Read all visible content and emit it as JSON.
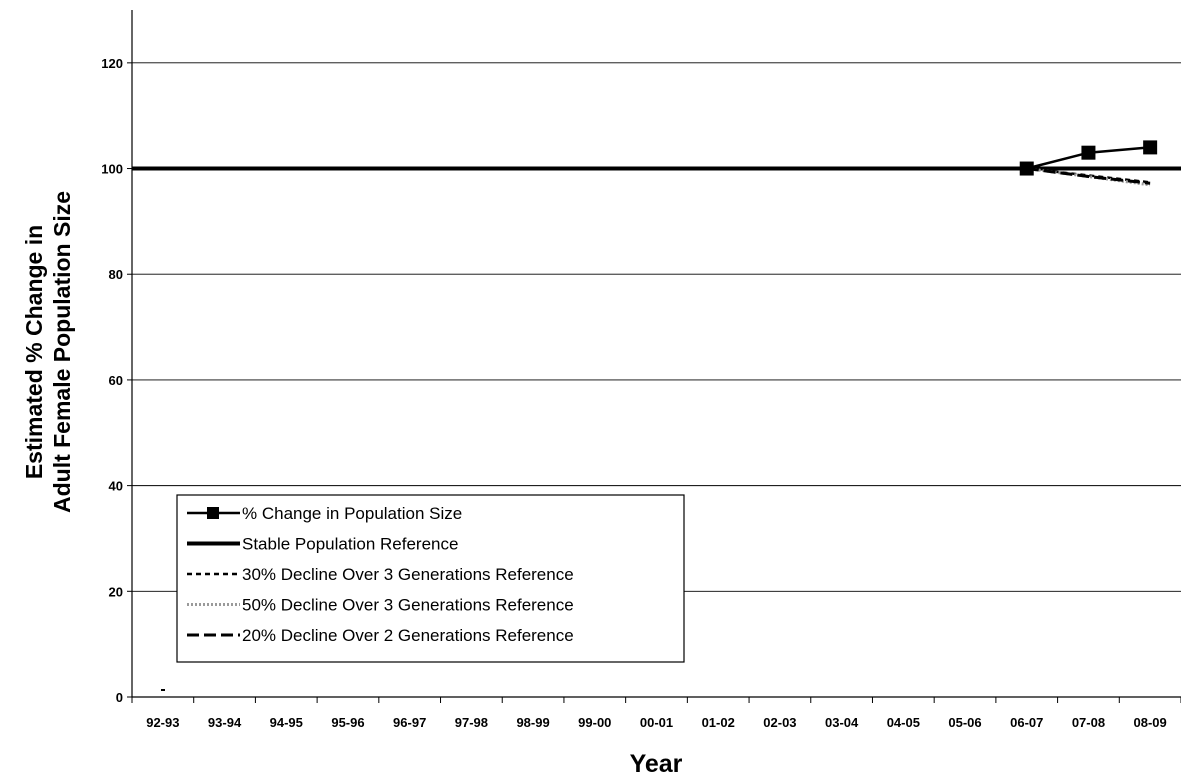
{
  "chart_data": {
    "type": "line",
    "title": "",
    "xlabel": "Year",
    "ylabel_lines": [
      "Estimated % Change in",
      "Adult Female Population Size"
    ],
    "categories": [
      "92-93",
      "93-94",
      "94-95",
      "95-96",
      "96-97",
      "97-98",
      "98-99",
      "99-00",
      "00-01",
      "01-02",
      "02-03",
      "03-04",
      "04-05",
      "05-06",
      "06-07",
      "07-08",
      "08-09"
    ],
    "ylim": [
      0,
      130
    ],
    "yticks": [
      0,
      20,
      40,
      60,
      80,
      100,
      120
    ],
    "grid": "horizontal",
    "legend_position": "bottom-left",
    "series": [
      {
        "name": "% Change in Population Size",
        "style": "solid-square-markers",
        "color": "#000000",
        "points": [
          [
            "06-07",
            100
          ],
          [
            "07-08",
            103
          ],
          [
            "08-09",
            104
          ]
        ]
      },
      {
        "name": "Stable Population Reference",
        "style": "solid-thick",
        "color": "#000000",
        "points": [
          [
            "92-93",
            100
          ],
          [
            "08-09",
            100
          ]
        ]
      },
      {
        "name": "30% Decline Over 3 Generations Reference",
        "style": "short-dash",
        "color": "#000000",
        "points": [
          [
            "06-07",
            100
          ],
          [
            "07-08",
            98.7
          ],
          [
            "08-09",
            97.4
          ]
        ]
      },
      {
        "name": "50% Decline Over 3 Generations Reference",
        "style": "dotted-grey",
        "color": "#9a9a9a",
        "points": [
          [
            "06-07",
            100
          ],
          [
            "07-08",
            98.5
          ],
          [
            "08-09",
            96.9
          ]
        ]
      },
      {
        "name": "20% Decline Over 2 Generations Reference",
        "style": "long-dash",
        "color": "#000000",
        "points": [
          [
            "06-07",
            100
          ],
          [
            "07-08",
            98.5
          ],
          [
            "08-09",
            97.2
          ]
        ]
      }
    ]
  }
}
